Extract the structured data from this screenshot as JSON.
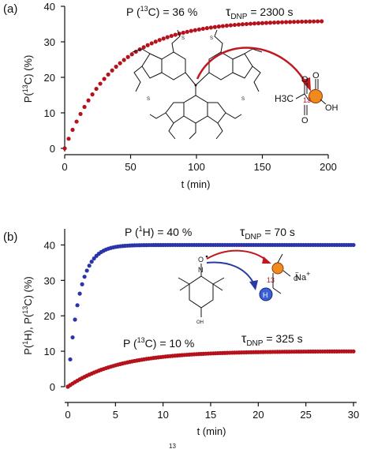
{
  "colors": {
    "red_series": "#b5121b",
    "blue_series": "#2b35a8",
    "highlight_orange": "#f08a1c",
    "highlight_blue": "#3a60d8",
    "arrow_red": "#c0181e",
    "arrow_blue": "#2a3aa0"
  },
  "chart_data": [
    {
      "panel": "(a)",
      "type": "scatter",
      "xlabel": "t (min)",
      "ylabel": "P(13C) (%)",
      "ylabel_parts": {
        "pre": "P(",
        "sup": "13",
        "post": "C) (%)"
      },
      "xlim": [
        0,
        200
      ],
      "ylim": [
        0,
        40
      ],
      "xticks": [
        0,
        50,
        100,
        150,
        200
      ],
      "yticks": [
        0,
        10,
        20,
        30,
        40
      ],
      "grid": false,
      "annotation": {
        "pol_pre": "P (",
        "pol_sup": "13",
        "pol_post": "C) = 36 %",
        "tau_sym": "τ",
        "tau_sub": "DNP",
        "tau_val": " = 2300 s"
      },
      "molecule_labels": {
        "h3c": "H3C",
        "isotope": "13",
        "carbonyl_o": "O",
        "oh": "OH",
        "ring_s": "S"
      },
      "series": [
        {
          "color": "red",
          "model": "exponential_buildup",
          "p_max": 36,
          "tau_min": 38.3,
          "t_start": 0,
          "t_end": 195,
          "points": 66
        }
      ]
    },
    {
      "panel": "(b)",
      "type": "scatter",
      "xlabel": "t (min)",
      "ylabel": "P(1H), P(13C) (%)",
      "ylabel_parts": {
        "p1": "P(",
        "sup1": "1",
        "mid": "H), P(",
        "sup2": "13",
        "post": "C) (%)"
      },
      "xlim": [
        0,
        30
      ],
      "ylim": [
        0,
        45
      ],
      "xticks": [
        0,
        5,
        10,
        15,
        20,
        25,
        30
      ],
      "yticks": [
        0,
        10,
        20,
        30,
        40
      ],
      "grid": false,
      "annotation_h": {
        "pol_pre": "P (",
        "pol_sup": "1",
        "pol_post": "H) = 40 %",
        "tau_sym": "τ",
        "tau_sub": "DNP",
        "tau_val": " = 70 s"
      },
      "annotation_c": {
        "pol_pre": "P (",
        "pol_sup": "13",
        "pol_post": "C) = 10 %",
        "tau_sym": "τ",
        "tau_sub": "DNP",
        "tau_val": " = 325 s"
      },
      "molecule_labels": {
        "isotope": "13",
        "na": "Na",
        "plus": "+",
        "h": "H",
        "oh": "OH",
        "o_radical": "O"
      },
      "series": [
        {
          "color": "blue",
          "model": "exponential_buildup",
          "p_max": 40,
          "tau_min": 1.17,
          "t_start": 0,
          "t_end": 30,
          "step": 0.25
        },
        {
          "color": "red",
          "model": "exponential_buildup",
          "p_max": 10,
          "tau_min": 5.42,
          "t_start": 0,
          "t_end": 30,
          "step": 0.25
        }
      ]
    }
  ],
  "caption_fragment": "13"
}
